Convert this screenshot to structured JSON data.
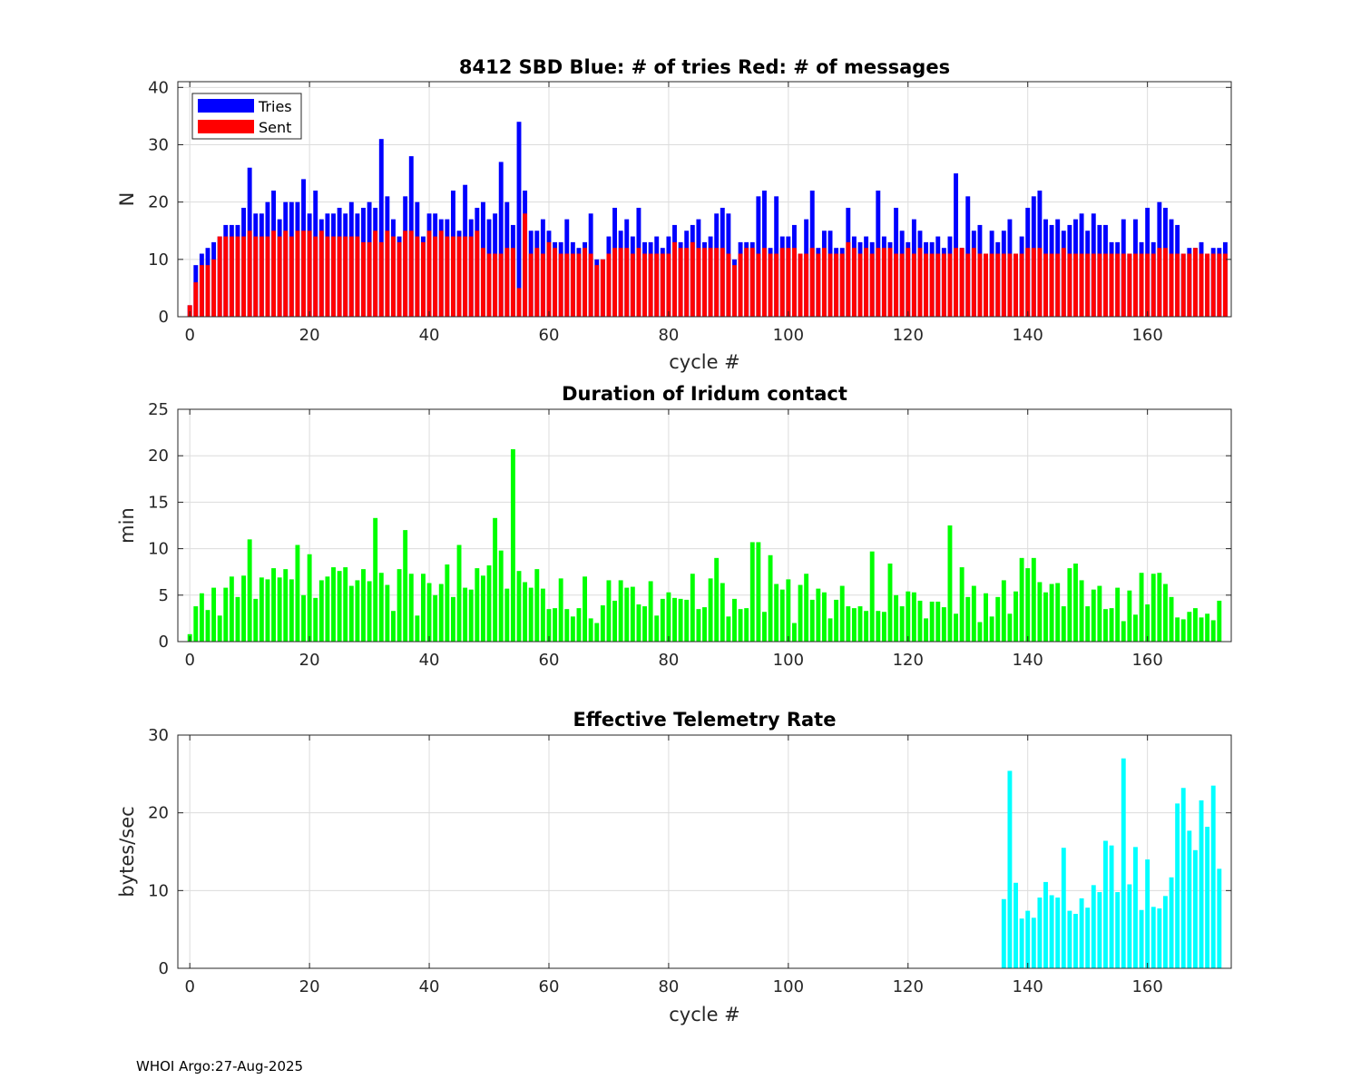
{
  "footer": "WHOI Argo:27-Aug-2025",
  "chart_data": [
    {
      "type": "bar",
      "stacked": "overlay",
      "title": "8412 SBD  Blue: # of tries   Red: # of messages",
      "xlabel": "cycle #",
      "ylabel": "N",
      "xlim": [
        -2,
        174
      ],
      "ylim": [
        0,
        41
      ],
      "xticks": [
        0,
        20,
        40,
        60,
        80,
        100,
        120,
        140,
        160
      ],
      "yticks": [
        0,
        10,
        20,
        30,
        40
      ],
      "grid": true,
      "legend": {
        "placement": "top-left",
        "entries": [
          "Tries",
          "Sent"
        ]
      },
      "colors": {
        "tries": "#0000ff",
        "sent": "#ff0000"
      },
      "x_start": 0,
      "series": [
        {
          "name": "Tries",
          "values": [
            2,
            9,
            11,
            12,
            13,
            14,
            16,
            16,
            16,
            19,
            26,
            18,
            18,
            20,
            22,
            17,
            20,
            20,
            20,
            24,
            18,
            22,
            17,
            18,
            18,
            19,
            18,
            20,
            18,
            19,
            20,
            19,
            31,
            21,
            17,
            14,
            21,
            28,
            20,
            14,
            18,
            18,
            17,
            17,
            22,
            15,
            23,
            17,
            19,
            20,
            17,
            18,
            27,
            20,
            16,
            34,
            22,
            15,
            15,
            17,
            15,
            13,
            13,
            17,
            13,
            12,
            13,
            18,
            10,
            10,
            14,
            19,
            15,
            17,
            14,
            19,
            13,
            13,
            14,
            12,
            14,
            16,
            13,
            15,
            16,
            17,
            13,
            14,
            18,
            19,
            18,
            10,
            13,
            13,
            13,
            21,
            22,
            12,
            21,
            14,
            14,
            16,
            11,
            17,
            22,
            12,
            15,
            15,
            12,
            12,
            19,
            14,
            13,
            14,
            13,
            22,
            14,
            13,
            19,
            15,
            13,
            17,
            15,
            13,
            13,
            14,
            12,
            14,
            25,
            12,
            21,
            15,
            16,
            11,
            15,
            13,
            15,
            17,
            11,
            14,
            19,
            21,
            22,
            17,
            16,
            17,
            15,
            16,
            17,
            18,
            15,
            18,
            16,
            16,
            13,
            13,
            17,
            11,
            17,
            13,
            19,
            13,
            20,
            19,
            17,
            16,
            11,
            12,
            12,
            13,
            11,
            12,
            12,
            13
          ]
        },
        {
          "name": "Sent",
          "values": [
            2,
            6,
            9,
            9,
            10,
            14,
            14,
            14,
            14,
            14,
            15,
            14,
            14,
            14,
            15,
            14,
            15,
            14,
            15,
            15,
            15,
            14,
            15,
            14,
            14,
            14,
            14,
            14,
            14,
            13,
            13,
            15,
            13,
            15,
            14,
            13,
            15,
            15,
            14,
            13,
            15,
            14,
            15,
            14,
            14,
            14,
            14,
            14,
            15,
            12,
            11,
            11,
            11,
            12,
            12,
            5,
            18,
            11,
            12,
            11,
            13,
            12,
            11,
            11,
            11,
            11,
            12,
            11,
            9,
            10,
            11,
            12,
            12,
            12,
            11,
            12,
            11,
            11,
            11,
            11,
            11,
            13,
            12,
            12,
            13,
            12,
            12,
            12,
            12,
            12,
            11,
            9,
            11,
            12,
            12,
            11,
            12,
            11,
            11,
            12,
            12,
            12,
            11,
            11,
            12,
            11,
            12,
            11,
            11,
            11,
            13,
            12,
            11,
            12,
            11,
            12,
            12,
            12,
            11,
            11,
            12,
            11,
            12,
            11,
            11,
            11,
            11,
            11,
            12,
            12,
            11,
            12,
            11,
            11,
            11,
            11,
            11,
            11,
            11,
            11,
            12,
            12,
            12,
            11,
            11,
            11,
            12,
            11,
            11,
            11,
            11,
            11,
            11,
            11,
            11,
            11,
            11,
            11,
            11,
            11,
            11,
            11,
            12,
            12,
            11,
            11,
            11,
            11,
            12,
            11,
            11,
            11,
            11,
            11
          ]
        }
      ]
    },
    {
      "type": "bar",
      "title": "Duration of Iridum contact",
      "xlabel": "",
      "ylabel": "min",
      "xlim": [
        -2,
        174
      ],
      "ylim": [
        0,
        25
      ],
      "xticks": [
        0,
        20,
        40,
        60,
        80,
        100,
        120,
        140,
        160
      ],
      "yticks": [
        0,
        5,
        10,
        15,
        20,
        25
      ],
      "grid": true,
      "colors": {
        "bars": "#00ff00"
      },
      "x_start": 0,
      "series": [
        {
          "name": "Duration",
          "values": [
            0.8,
            3.8,
            5.2,
            3.4,
            5.8,
            2.8,
            5.8,
            7.0,
            4.8,
            7.1,
            11.0,
            4.6,
            6.9,
            6.7,
            7.9,
            6.9,
            7.8,
            6.7,
            10.4,
            5.0,
            9.4,
            4.7,
            6.6,
            7.0,
            8.0,
            7.6,
            8.0,
            6.0,
            6.6,
            7.8,
            6.5,
            13.3,
            7.4,
            6.1,
            3.3,
            7.8,
            12.0,
            7.3,
            2.8,
            7.3,
            6.3,
            5.0,
            6.2,
            8.3,
            4.8,
            10.4,
            5.8,
            5.6,
            7.9,
            7.1,
            8.2,
            13.3,
            9.8,
            5.7,
            20.7,
            7.6,
            6.4,
            5.8,
            7.8,
            5.7,
            3.5,
            3.6,
            6.8,
            3.5,
            2.7,
            3.6,
            7.0,
            2.5,
            2.0,
            3.9,
            6.6,
            4.4,
            6.6,
            5.8,
            5.9,
            4.0,
            3.8,
            6.5,
            2.8,
            4.6,
            5.3,
            4.7,
            4.6,
            4.5,
            7.3,
            3.5,
            3.7,
            6.8,
            9.0,
            6.3,
            2.7,
            4.6,
            3.5,
            3.6,
            10.7,
            10.7,
            3.2,
            9.3,
            6.2,
            5.6,
            6.7,
            2.0,
            6.1,
            7.3,
            4.5,
            5.7,
            5.3,
            2.5,
            4.5,
            6.0,
            3.8,
            3.6,
            3.8,
            3.3,
            9.7,
            3.3,
            3.2,
            8.4,
            5.0,
            3.8,
            5.4,
            5.3,
            4.4,
            2.5,
            4.3,
            4.3,
            3.7,
            12.5,
            3.0,
            8.0,
            4.8,
            6.0,
            2.1,
            5.2,
            2.7,
            4.8,
            6.6,
            3.0,
            5.4,
            9.0,
            7.9,
            9.0,
            6.4,
            5.3,
            6.2,
            6.3,
            3.8,
            7.9,
            8.4,
            6.6,
            3.8,
            5.6,
            6.0,
            3.5,
            3.6,
            5.8,
            2.2,
            5.5,
            2.9,
            7.4,
            4.0,
            7.3,
            7.4,
            6.2,
            4.8,
            2.6,
            2.4,
            3.2,
            3.6,
            2.6,
            3.0,
            2.3,
            4.4
          ]
        }
      ]
    },
    {
      "type": "bar",
      "title": "Effective Telemetry Rate",
      "xlabel": "cycle #",
      "ylabel": "bytes/sec",
      "xlim": [
        -2,
        174
      ],
      "ylim": [
        0,
        30
      ],
      "xticks": [
        0,
        20,
        40,
        60,
        80,
        100,
        120,
        140,
        160
      ],
      "yticks": [
        0,
        10,
        20,
        30
      ],
      "grid": true,
      "colors": {
        "bars": "#00ffff"
      },
      "x_start": 136,
      "series": [
        {
          "name": "Rate",
          "values": [
            8.9,
            25.4,
            11.0,
            6.4,
            7.4,
            6.5,
            9.1,
            11.1,
            9.4,
            9.1,
            15.5,
            7.4,
            7.0,
            9.0,
            7.8,
            10.7,
            9.8,
            16.4,
            15.8,
            9.8,
            27.0,
            10.8,
            15.6,
            7.5,
            14.0,
            7.9,
            7.7,
            9.3,
            11.7,
            21.2,
            23.2,
            17.7,
            15.2,
            21.6,
            18.2,
            23.5,
            12.8
          ]
        }
      ]
    }
  ]
}
